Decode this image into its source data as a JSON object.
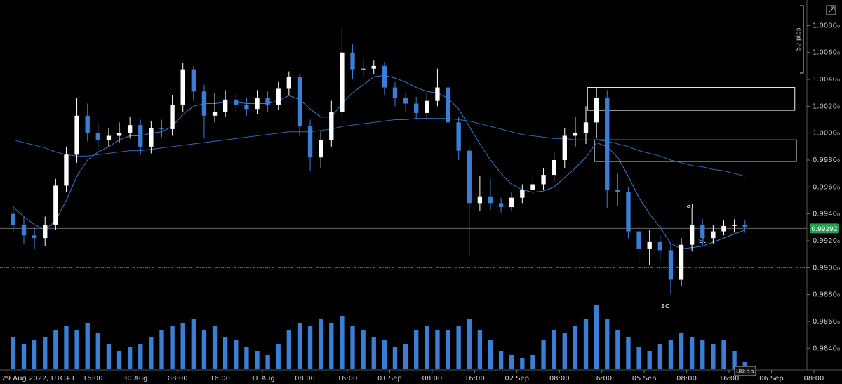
{
  "chart_data": {
    "type": "candlestick",
    "x": [
      1,
      3,
      5,
      7,
      9,
      11,
      13,
      15,
      17,
      19,
      21,
      23,
      25,
      27,
      29,
      31,
      33,
      35,
      37,
      39,
      41,
      43,
      45,
      47,
      49,
      51,
      53,
      55,
      57,
      59,
      61,
      63,
      65,
      67,
      69,
      71,
      73,
      75,
      77,
      79,
      81,
      83,
      85,
      87,
      89,
      91,
      93,
      95,
      97,
      99,
      101,
      103,
      105,
      107,
      109,
      111,
      113,
      115,
      117,
      119,
      121,
      123,
      125,
      127,
      129,
      131,
      133,
      135,
      137,
      139
    ],
    "open": [
      0.994,
      0.9932,
      0.9924,
      0.9922,
      0.9932,
      0.9961,
      0.9984,
      1.0013,
      1.0,
      0.9995,
      0.9998,
      1.0,
      1.0006,
      0.999,
      1.0004,
      1.0003,
      1.0021,
      1.0047,
      1.0031,
      1.0013,
      1.0016,
      1.0025,
      1.0021,
      1.0018,
      1.0026,
      1.0021,
      1.0033,
      1.0042,
      1.0005,
      0.9982,
      0.9995,
      1.0016,
      1.006,
      1.0047,
      1.0048,
      1.005,
      1.0034,
      1.0026,
      1.0022,
      1.0015,
      1.0024,
      1.0034,
      1.0008,
      0.9987,
      0.9948,
      0.9953,
      0.9948,
      0.9945,
      0.9952,
      0.9958,
      0.9962,
      0.9969,
      0.998,
      0.9998,
      1.0,
      1.0008,
      1.0026,
      0.9958,
      0.9956,
      0.9927,
      0.9914,
      0.9919,
      0.9913,
      0.9891,
      0.9917,
      0.9932,
      0.9922,
      0.9927,
      0.9931,
      0.9932
    ],
    "high": [
      0.9946,
      0.9938,
      0.993,
      0.9938,
      0.9966,
      0.999,
      1.0026,
      1.0022,
      1.0008,
      1.0004,
      1.0008,
      1.0012,
      1.001,
      1.0009,
      1.001,
      1.0028,
      1.0052,
      1.005,
      1.0036,
      1.003,
      1.0032,
      1.003,
      1.0026,
      1.0032,
      1.0031,
      1.0038,
      1.0046,
      1.0044,
      1.001,
      1.0002,
      1.0024,
      1.0078,
      1.0066,
      1.0056,
      1.0054,
      1.0053,
      1.0038,
      1.003,
      1.0027,
      1.003,
      1.0048,
      1.0038,
      1.0012,
      0.999,
      0.9968,
      0.9966,
      0.9952,
      0.9956,
      0.9962,
      0.9968,
      0.9974,
      0.9986,
      1.0004,
      1.0012,
      1.002,
      1.0034,
      1.0032,
      0.997,
      0.996,
      0.9932,
      0.9928,
      0.9924,
      0.9918,
      0.9922,
      0.9944,
      0.9936,
      0.9932,
      0.9935,
      0.9936,
      0.9935
    ],
    "low": [
      0.9926,
      0.9918,
      0.9914,
      0.9916,
      0.9928,
      0.9956,
      0.9978,
      0.9994,
      0.9988,
      0.999,
      0.9993,
      0.9996,
      0.9984,
      0.9985,
      0.9997,
      0.9998,
      1.0016,
      1.0024,
      0.9996,
      1.0008,
      1.0012,
      1.0016,
      1.0013,
      1.0014,
      1.0016,
      1.0017,
      1.0028,
      0.9998,
      0.9972,
      0.9974,
      0.999,
      1.0012,
      1.004,
      1.0042,
      1.0044,
      1.0028,
      1.002,
      1.0016,
      1.001,
      1.0011,
      1.002,
      1.0002,
      0.998,
      0.9909,
      0.9942,
      0.9943,
      0.9941,
      0.9942,
      0.9948,
      0.9954,
      0.9958,
      0.9964,
      0.9974,
      0.999,
      0.9992,
      0.9996,
      0.9944,
      0.9946,
      0.9922,
      0.9902,
      0.9902,
      0.9905,
      0.988,
      0.9886,
      0.9912,
      0.9916,
      0.9918,
      0.9924,
      0.9926,
      0.9926
    ],
    "close": [
      0.9932,
      0.9924,
      0.9922,
      0.9932,
      0.9961,
      0.9984,
      1.0013,
      1.0,
      0.9995,
      0.9998,
      1.0,
      1.0006,
      0.999,
      1.0004,
      1.0003,
      1.0021,
      1.0047,
      1.0031,
      1.0013,
      1.0016,
      1.0025,
      1.0021,
      1.0018,
      1.0026,
      1.0021,
      1.0033,
      1.0042,
      1.0005,
      0.9982,
      0.9995,
      1.0016,
      1.006,
      1.0047,
      1.0048,
      1.005,
      1.0034,
      1.0026,
      1.0022,
      1.0015,
      1.0024,
      1.0034,
      1.0008,
      0.9987,
      0.9948,
      0.9953,
      0.9948,
      0.9945,
      0.9952,
      0.9958,
      0.9962,
      0.9969,
      0.998,
      0.9998,
      1.0,
      1.0008,
      1.0026,
      0.9958,
      0.9956,
      0.9927,
      0.9914,
      0.9919,
      0.9913,
      0.9891,
      0.9917,
      0.9932,
      0.9922,
      0.9927,
      0.9931,
      0.9932,
      0.993
    ],
    "up_color": "#ffffff",
    "down_color": "#3a7fd5",
    "lines": [
      {
        "color": "#3b7ad0",
        "values": [
          0.9945,
          0.9938,
          0.9932,
          0.9928,
          0.9935,
          0.995,
          0.9968,
          0.998,
          0.9986,
          0.999,
          0.9995,
          0.9998,
          0.9998,
          1.0,
          1.0001,
          1.0005,
          1.0014,
          1.002,
          1.0022,
          1.0022,
          1.0023,
          1.0023,
          1.0022,
          1.0022,
          1.0022,
          1.0024,
          1.0028,
          1.0025,
          1.0018,
          1.0012,
          1.0012,
          1.0022,
          1.003,
          1.0036,
          1.0042,
          1.0043,
          1.0041,
          1.0038,
          1.0034,
          1.0031,
          1.003,
          1.0026,
          1.0018,
          1.0005,
          0.9992,
          0.998,
          0.997,
          0.9962,
          0.9958,
          0.9956,
          0.9957,
          0.996,
          0.9967,
          0.9974,
          0.9982,
          0.9993,
          0.999,
          0.9982,
          0.9968,
          0.9952,
          0.994,
          0.993,
          0.9918,
          0.9914,
          0.9915,
          0.9916,
          0.9919,
          0.9922,
          0.9925,
          0.9928
        ]
      },
      {
        "color": "#2d68b8",
        "values": [
          0.9995,
          0.9993,
          0.9991,
          0.9989,
          0.9986,
          0.9984,
          0.9983,
          0.9983,
          0.9984,
          0.9985,
          0.9986,
          0.9987,
          0.9987,
          0.9988,
          0.9989,
          0.999,
          0.9991,
          0.9992,
          0.9993,
          0.9994,
          0.9995,
          0.9996,
          0.9997,
          0.9998,
          0.9999,
          1.0,
          1.0001,
          1.0001,
          1.0001,
          1.0002,
          1.0003,
          1.0005,
          1.0006,
          1.0007,
          1.0008,
          1.0009,
          1.001,
          1.001,
          1.0011,
          1.0011,
          1.0011,
          1.0011,
          1.001,
          1.0009,
          1.0007,
          1.0005,
          1.0003,
          1.0001,
          0.9999,
          0.9998,
          0.9997,
          0.9996,
          0.9996,
          0.9995,
          0.9995,
          0.9995,
          0.9994,
          0.9992,
          0.999,
          0.9987,
          0.9985,
          0.9983,
          0.998,
          0.9978,
          0.9976,
          0.9975,
          0.9973,
          0.9972,
          0.997,
          0.9968
        ]
      }
    ],
    "volume": {
      "color": "#3a7fd5",
      "ylim": [
        0,
        100
      ],
      "values": [
        45,
        35,
        40,
        45,
        55,
        60,
        55,
        65,
        50,
        35,
        25,
        30,
        35,
        45,
        55,
        60,
        65,
        70,
        55,
        60,
        45,
        40,
        30,
        25,
        20,
        35,
        55,
        65,
        60,
        70,
        65,
        75,
        60,
        55,
        45,
        40,
        30,
        35,
        55,
        60,
        55,
        55,
        60,
        70,
        55,
        40,
        25,
        20,
        15,
        20,
        40,
        55,
        50,
        60,
        70,
        90,
        70,
        55,
        45,
        30,
        25,
        35,
        40,
        50,
        45,
        40,
        35,
        40,
        25,
        10
      ]
    },
    "xlim": [
      -1.5,
      157.3
    ],
    "xticks": [
      {
        "value": 0,
        "label": "29 Aug 2022, UTC+1"
      },
      {
        "value": 16,
        "label": "16:00"
      },
      {
        "value": 24,
        "label": "30 Aug"
      },
      {
        "value": 32,
        "label": "08:00"
      },
      {
        "value": 40,
        "label": "16:00"
      },
      {
        "value": 48,
        "label": "31 Aug"
      },
      {
        "value": 56,
        "label": "08:00"
      },
      {
        "value": 64,
        "label": "16:00"
      },
      {
        "value": 72,
        "label": "01 Sep"
      },
      {
        "value": 80,
        "label": "08:00"
      },
      {
        "value": 88,
        "label": "16:00"
      },
      {
        "value": 96,
        "label": "02 Sep"
      },
      {
        "value": 104,
        "label": "08:00"
      },
      {
        "value": 112,
        "label": "16:00"
      },
      {
        "value": 120,
        "label": "05 Sep"
      },
      {
        "value": 128,
        "label": "08:00"
      },
      {
        "value": 136,
        "label": "16:00"
      },
      {
        "value": 144,
        "label": "06 Sep"
      },
      {
        "value": 152,
        "label": "08:00"
      }
    ],
    "ylim": [
      0.9825,
      1.0099
    ],
    "yticks": [
      {
        "value": 1.008,
        "label": "1.0080₀"
      },
      {
        "value": 1.006,
        "label": "1.0060₀"
      },
      {
        "value": 1.004,
        "label": "1.0040₀"
      },
      {
        "value": 1.002,
        "label": "1.0020₀"
      },
      {
        "value": 1.0,
        "label": "1.0000₀"
      },
      {
        "value": 0.998,
        "label": "0.9980₀"
      },
      {
        "value": 0.996,
        "label": "0.9960₀"
      },
      {
        "value": 0.994,
        "label": "0.9940₀"
      },
      {
        "value": 0.992,
        "label": "0.9920₀"
      },
      {
        "value": 0.99,
        "label": "0.9900₀"
      },
      {
        "value": 0.988,
        "label": "0.9880₀"
      },
      {
        "value": 0.986,
        "label": "0.9860₀"
      },
      {
        "value": 0.984,
        "label": "0.9840₀"
      }
    ],
    "current_price": 0.99292,
    "current_price_color": "#22a052",
    "level_line": {
      "value": 0.99,
      "color": "#d2691e"
    },
    "zones": [
      {
        "x": [
          109.3,
          148.4
        ],
        "y": [
          1.0034,
          1.0017
        ]
      },
      {
        "x": [
          110.6,
          148.7
        ],
        "y": [
          0.9995,
          0.9979
        ]
      }
    ],
    "annotations": [
      {
        "text": "ar"
      },
      {
        "text": "st"
      },
      {
        "text": "sc"
      }
    ],
    "ruler_label": "50 pips",
    "time_label": "08:55"
  }
}
